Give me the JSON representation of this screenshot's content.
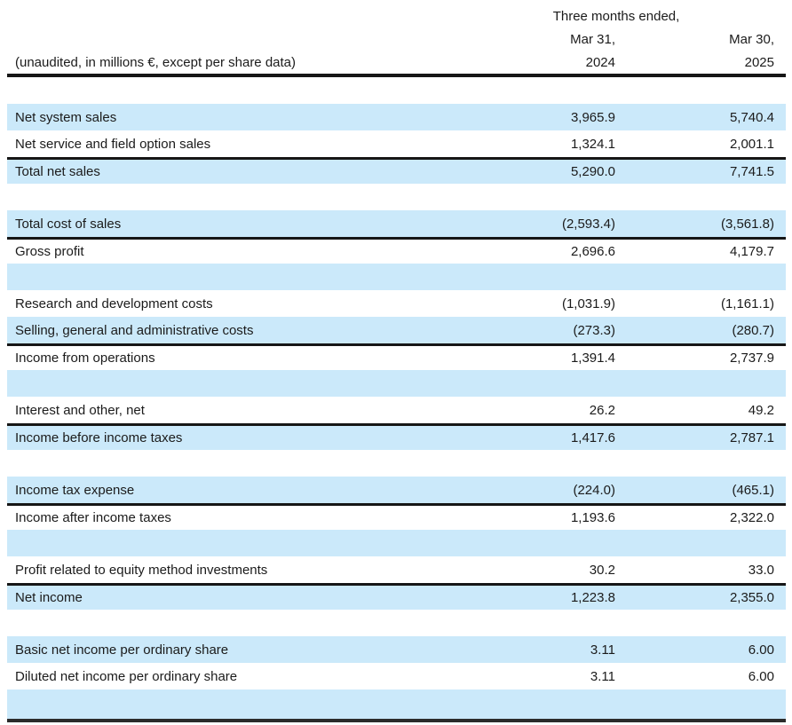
{
  "colors": {
    "background": "#ffffff",
    "text": "#1b1b1b",
    "row_highlight": "#cbe9fa",
    "rule": "#161616"
  },
  "header": {
    "period_label": "Three months ended,",
    "caption": "(unaudited, in millions €, except per share data)",
    "col_2024": {
      "date": "Mar 31,",
      "year": "2024"
    },
    "col_2025": {
      "date": "Mar 30,",
      "year": "2025"
    }
  },
  "table": {
    "rows": [
      {
        "blank": true
      },
      {
        "label": "Net system sales",
        "y2024": "3,965.9",
        "y2025": "5,740.4"
      },
      {
        "label": "Net service and field option sales",
        "y2024": "1,324.1",
        "y2025": "2,001.1"
      },
      {
        "label": "Total net sales",
        "y2024": "5,290.0",
        "y2025": "7,741.5",
        "rule_above": true
      },
      {
        "blank": true
      },
      {
        "label": "Total cost of sales",
        "y2024": "(2,593.4)",
        "y2025": "(3,561.8)"
      },
      {
        "label": "Gross profit",
        "y2024": "2,696.6",
        "y2025": "4,179.7",
        "rule_above": true
      },
      {
        "blank": true
      },
      {
        "label": "Research and development costs",
        "y2024": "(1,031.9)",
        "y2025": "(1,161.1)"
      },
      {
        "label": "Selling, general and administrative costs",
        "y2024": "(273.3)",
        "y2025": "(280.7)"
      },
      {
        "label": "Income from operations",
        "y2024": "1,391.4",
        "y2025": "2,737.9",
        "rule_above": true
      },
      {
        "blank": true
      },
      {
        "label": "Interest and other, net",
        "y2024": "26.2",
        "y2025": "49.2"
      },
      {
        "label": "Income before income taxes",
        "y2024": "1,417.6",
        "y2025": "2,787.1",
        "rule_above": true
      },
      {
        "blank": true
      },
      {
        "label": "Income tax expense",
        "y2024": "(224.0)",
        "y2025": "(465.1)"
      },
      {
        "label": "Income after income taxes",
        "y2024": "1,193.6",
        "y2025": "2,322.0",
        "rule_above": true
      },
      {
        "blank": true
      },
      {
        "label": "Profit related to equity method investments",
        "y2024": "30.2",
        "y2025": "33.0"
      },
      {
        "label": "Net income",
        "y2024": "1,223.8",
        "y2025": "2,355.0",
        "rule_above": true
      },
      {
        "blank": true
      },
      {
        "label": "Basic net income per ordinary share",
        "y2024": "3.11",
        "y2025": "6.00"
      },
      {
        "label": "Diluted net income per ordinary share",
        "y2024": "3.11",
        "y2025": "6.00"
      },
      {
        "blank": true,
        "tall": true
      }
    ]
  }
}
